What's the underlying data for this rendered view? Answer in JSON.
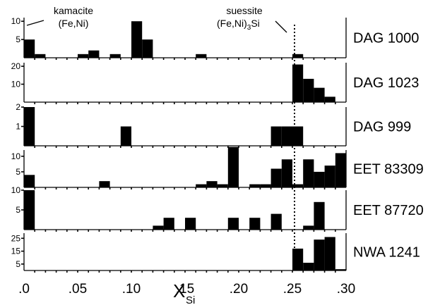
{
  "chart_data": {
    "type": "bar",
    "xlabel": "X",
    "xlabel_sub": "Si",
    "xticks": [
      ".0",
      ".05",
      ".10",
      ".15",
      ".20",
      ".25",
      ".30"
    ],
    "xlim": [
      0,
      0.3
    ],
    "bin_width": 0.01,
    "annotations": [
      {
        "line1": "kamacite",
        "line2": "(Fe,Ni)"
      },
      {
        "line1": "suessite",
        "line2_pre": "(Fe,Ni)",
        "line2_sub": "3",
        "line2_post": "Si"
      }
    ],
    "marker_x": 0.25,
    "panels": [
      {
        "name": "DAG 1000",
        "ylim": [
          0,
          11
        ],
        "yticks": [
          "5",
          "10"
        ],
        "bars": [
          [
            0.0,
            5
          ],
          [
            0.01,
            1
          ],
          [
            0.05,
            1
          ],
          [
            0.06,
            2
          ],
          [
            0.08,
            1
          ],
          [
            0.1,
            10
          ],
          [
            0.11,
            5
          ],
          [
            0.16,
            1
          ],
          [
            0.25,
            1
          ]
        ]
      },
      {
        "name": "DAG 1023",
        "ylim": [
          0,
          22
        ],
        "yticks": [
          "10",
          "20"
        ],
        "bars": [
          [
            0.25,
            21
          ],
          [
            0.26,
            13
          ],
          [
            0.27,
            8
          ],
          [
            0.28,
            3
          ]
        ]
      },
      {
        "name": "DAG 999",
        "ylim": [
          0,
          2
        ],
        "yticks": [
          "1",
          "2"
        ],
        "bars": [
          [
            0.0,
            2
          ],
          [
            0.09,
            1
          ],
          [
            0.23,
            1
          ],
          [
            0.24,
            1
          ],
          [
            0.25,
            1
          ]
        ]
      },
      {
        "name": "EET 83309",
        "ylim": [
          0,
          12
        ],
        "yticks": [
          "10",
          "5"
        ],
        "bars": [
          [
            0.0,
            4
          ],
          [
            0.07,
            2
          ],
          [
            0.16,
            1
          ],
          [
            0.17,
            2
          ],
          [
            0.18,
            1
          ],
          [
            0.19,
            13
          ],
          [
            0.21,
            1
          ],
          [
            0.22,
            1
          ],
          [
            0.23,
            6
          ],
          [
            0.24,
            9
          ],
          [
            0.25,
            1
          ],
          [
            0.26,
            9
          ],
          [
            0.27,
            5
          ],
          [
            0.28,
            7
          ],
          [
            0.29,
            11
          ]
        ]
      },
      {
        "name": "EET 87720",
        "ylim": [
          0,
          10
        ],
        "yticks": [
          "10",
          "5"
        ],
        "bars": [
          [
            0.0,
            10
          ],
          [
            0.12,
            1
          ],
          [
            0.13,
            3
          ],
          [
            0.15,
            3
          ],
          [
            0.19,
            3
          ],
          [
            0.21,
            3
          ],
          [
            0.23,
            4
          ],
          [
            0.26,
            1
          ],
          [
            0.27,
            7
          ]
        ]
      },
      {
        "name": "NWA 1241",
        "ylim": [
          0,
          29
        ],
        "yticks": [
          "25",
          "15",
          "5"
        ],
        "bars": [
          [
            0.25,
            17
          ],
          [
            0.26,
            6
          ],
          [
            0.27,
            24
          ],
          [
            0.28,
            26
          ],
          [
            0.29,
            1
          ]
        ]
      }
    ]
  }
}
